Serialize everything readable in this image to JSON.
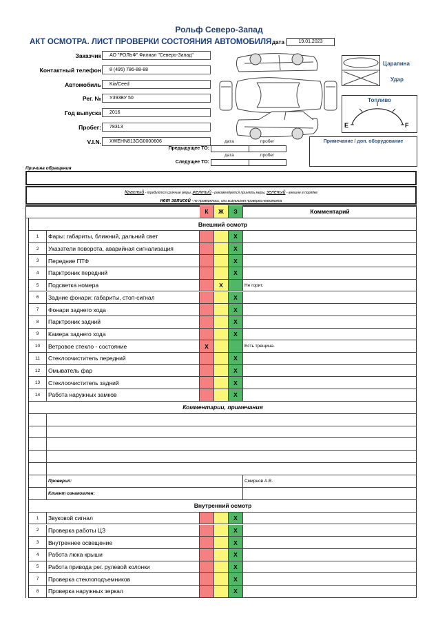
{
  "header": {
    "company": "Рольф Северо-Запад",
    "title": "АКТ ОСМОТРА. ЛИСТ ПРОВЕРКИ СОСТОЯНИЯ АВТОМОБИЛЯ",
    "date_label": "дата",
    "date": "19.01.2023"
  },
  "fields": [
    {
      "label": "Заказчик",
      "value": "АО \"РОЛЬФ\" Филиал \"Северо-Запад\""
    },
    {
      "label": "Контактный телефон",
      "value": "8 (495) 786-88-88"
    },
    {
      "label": "Автомобиль",
      "value": "Kia/Ceed"
    },
    {
      "label": "Рег. №",
      "value": "У393ВУ 50"
    },
    {
      "label": "Год выпуска",
      "value": "2016"
    },
    {
      "label": "Пробег:",
      "value": "78313"
    },
    {
      "label": "V.I.N.",
      "value": "XWEHN813GG0000606"
    }
  ],
  "service": {
    "col_date": "дата",
    "col_mileage": "пробег",
    "previous_label": "Предыдущее ТО:",
    "next_label": "Следущее ТО:",
    "previous_date": "",
    "previous_mileage": "",
    "next_date": "",
    "next_mileage": ""
  },
  "damage_legend": {
    "scratch": "Царапина",
    "impact": "Удар"
  },
  "fuel": {
    "label": "Топливо",
    "empty": "E",
    "full": "F"
  },
  "notes_label": "Примечание / доп. оборудование",
  "reason_label": "Причина обращения",
  "reason_value": "",
  "color_legend": {
    "red": "Красный",
    "red_desc": " - требуются срочные меры, ",
    "yellow": "желтый",
    "yellow_desc": " - рекомендуется принять меры, ",
    "green": "зеленый",
    "green_desc": " - внешне в порядке",
    "none": "нет записей",
    "none_desc": " - не проверялось, или визуальная проверка невозможна"
  },
  "table": {
    "col_k": "К",
    "col_y": "Ж",
    "col_g": "З",
    "col_comment": "Комментарий",
    "colors": {
      "red": "#f48080",
      "yellow": "#fbf57a",
      "green": "#4fb765"
    },
    "exterior_title": "Внешний осмотр",
    "exterior": [
      {
        "n": "1",
        "name": "Фары: габариты, ближний, дальний свет",
        "k": "",
        "y": "",
        "g": "X",
        "comment": ""
      },
      {
        "n": "2",
        "name": "Указатели поворота, аварийная сигнализация",
        "k": "",
        "y": "",
        "g": "X",
        "comment": ""
      },
      {
        "n": "3",
        "name": "Передние ПТФ",
        "k": "",
        "y": "",
        "g": "X",
        "comment": ""
      },
      {
        "n": "4",
        "name": "Парктроник передний",
        "k": "",
        "y": "",
        "g": "X",
        "comment": ""
      },
      {
        "n": "5",
        "name": "Подсветка номера",
        "k": "",
        "y": "X",
        "g": "",
        "comment": "Не горит."
      },
      {
        "n": "6",
        "name": "Задние фонари: габариты, стоп-сигнал",
        "k": "",
        "y": "",
        "g": "X",
        "comment": ""
      },
      {
        "n": "7",
        "name": "Фонари заднего хода",
        "k": "",
        "y": "",
        "g": "X",
        "comment": ""
      },
      {
        "n": "8",
        "name": "Парктроник задний",
        "k": "",
        "y": "",
        "g": "X",
        "comment": ""
      },
      {
        "n": "9",
        "name": "Камера заднего хода",
        "k": "",
        "y": "",
        "g": "X",
        "comment": ""
      },
      {
        "n": "10",
        "name": "Ветровое стекло - состояние",
        "k": "X",
        "y": "",
        "g": "",
        "comment": "Есть трещина."
      },
      {
        "n": "11",
        "name": "Стеклоочиститель передний",
        "k": "",
        "y": "",
        "g": "X",
        "comment": ""
      },
      {
        "n": "12",
        "name": "Омыватель фар",
        "k": "",
        "y": "",
        "g": "X",
        "comment": ""
      },
      {
        "n": "13",
        "name": "Стеклоочиститель задний",
        "k": "",
        "y": "",
        "g": "X",
        "comment": ""
      },
      {
        "n": "14",
        "name": "Работа наружных замков",
        "k": "",
        "y": "",
        "g": "X",
        "comment": ""
      }
    ],
    "comments_title": "Комментарии, примечания",
    "checked_label": "Проверил:",
    "checked_value": "Смирнов А.В.",
    "client_label": "Клиент ознакомлен:",
    "client_value": "",
    "interior_title": "Внутренний осмотр",
    "interior": [
      {
        "n": "1",
        "name": "Звуковой сигнал",
        "k": "",
        "y": "",
        "g": "X",
        "comment": ""
      },
      {
        "n": "2",
        "name": "Проверка работы ЦЗ",
        "k": "",
        "y": "",
        "g": "X",
        "comment": ""
      },
      {
        "n": "3",
        "name": "Внутреннее освещение",
        "k": "",
        "y": "",
        "g": "X",
        "comment": ""
      },
      {
        "n": "4",
        "name": "Работа люка крыши",
        "k": "",
        "y": "",
        "g": "X",
        "comment": ""
      },
      {
        "n": "5",
        "name": "Работа привода рег. рулевой колонки",
        "k": "",
        "y": "",
        "g": "X",
        "comment": ""
      },
      {
        "n": "7",
        "name": "Проверка стеклоподъемников",
        "k": "",
        "y": "",
        "g": "X",
        "comment": ""
      },
      {
        "n": "8",
        "name": "Проверка наружных зеркал",
        "k": "",
        "y": "",
        "g": "X",
        "comment": ""
      }
    ]
  }
}
